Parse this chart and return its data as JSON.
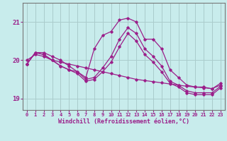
{
  "xlabel": "Windchill (Refroidissement éolien,°C)",
  "bg_color": "#c8ecec",
  "line_color": "#9b1f8a",
  "grid_color": "#aacccc",
  "axis_color": "#777777",
  "xlim": [
    -0.5,
    23.5
  ],
  "ylim": [
    18.7,
    21.5
  ],
  "yticks": [
    19,
    20,
    21
  ],
  "xticks": [
    0,
    1,
    2,
    3,
    4,
    5,
    6,
    7,
    8,
    9,
    10,
    11,
    12,
    13,
    14,
    15,
    16,
    17,
    18,
    19,
    20,
    21,
    22,
    23
  ],
  "lines": [
    [
      19.9,
      20.2,
      20.2,
      20.1,
      20.0,
      19.85,
      19.7,
      19.55,
      20.3,
      20.65,
      20.75,
      21.05,
      21.1,
      21.0,
      20.55,
      20.55,
      20.3,
      19.75,
      19.55,
      19.35,
      19.3,
      19.3,
      19.25,
      19.4
    ],
    [
      19.9,
      20.2,
      20.15,
      20.0,
      19.85,
      19.75,
      19.7,
      19.5,
      19.55,
      19.8,
      20.1,
      20.55,
      20.85,
      20.7,
      20.3,
      20.1,
      19.85,
      19.45,
      19.35,
      19.2,
      19.15,
      19.15,
      19.15,
      19.32
    ],
    [
      19.9,
      20.2,
      20.15,
      20.0,
      19.85,
      19.75,
      19.65,
      19.45,
      19.5,
      19.7,
      19.95,
      20.35,
      20.7,
      20.5,
      20.15,
      19.95,
      19.7,
      19.4,
      19.3,
      19.15,
      19.1,
      19.1,
      19.1,
      19.28
    ],
    [
      20.0,
      20.15,
      20.1,
      20.0,
      19.95,
      19.9,
      19.85,
      19.8,
      19.75,
      19.7,
      19.65,
      19.6,
      19.55,
      19.5,
      19.47,
      19.44,
      19.41,
      19.38,
      19.35,
      19.32,
      19.3,
      19.28,
      19.26,
      19.35
    ]
  ]
}
